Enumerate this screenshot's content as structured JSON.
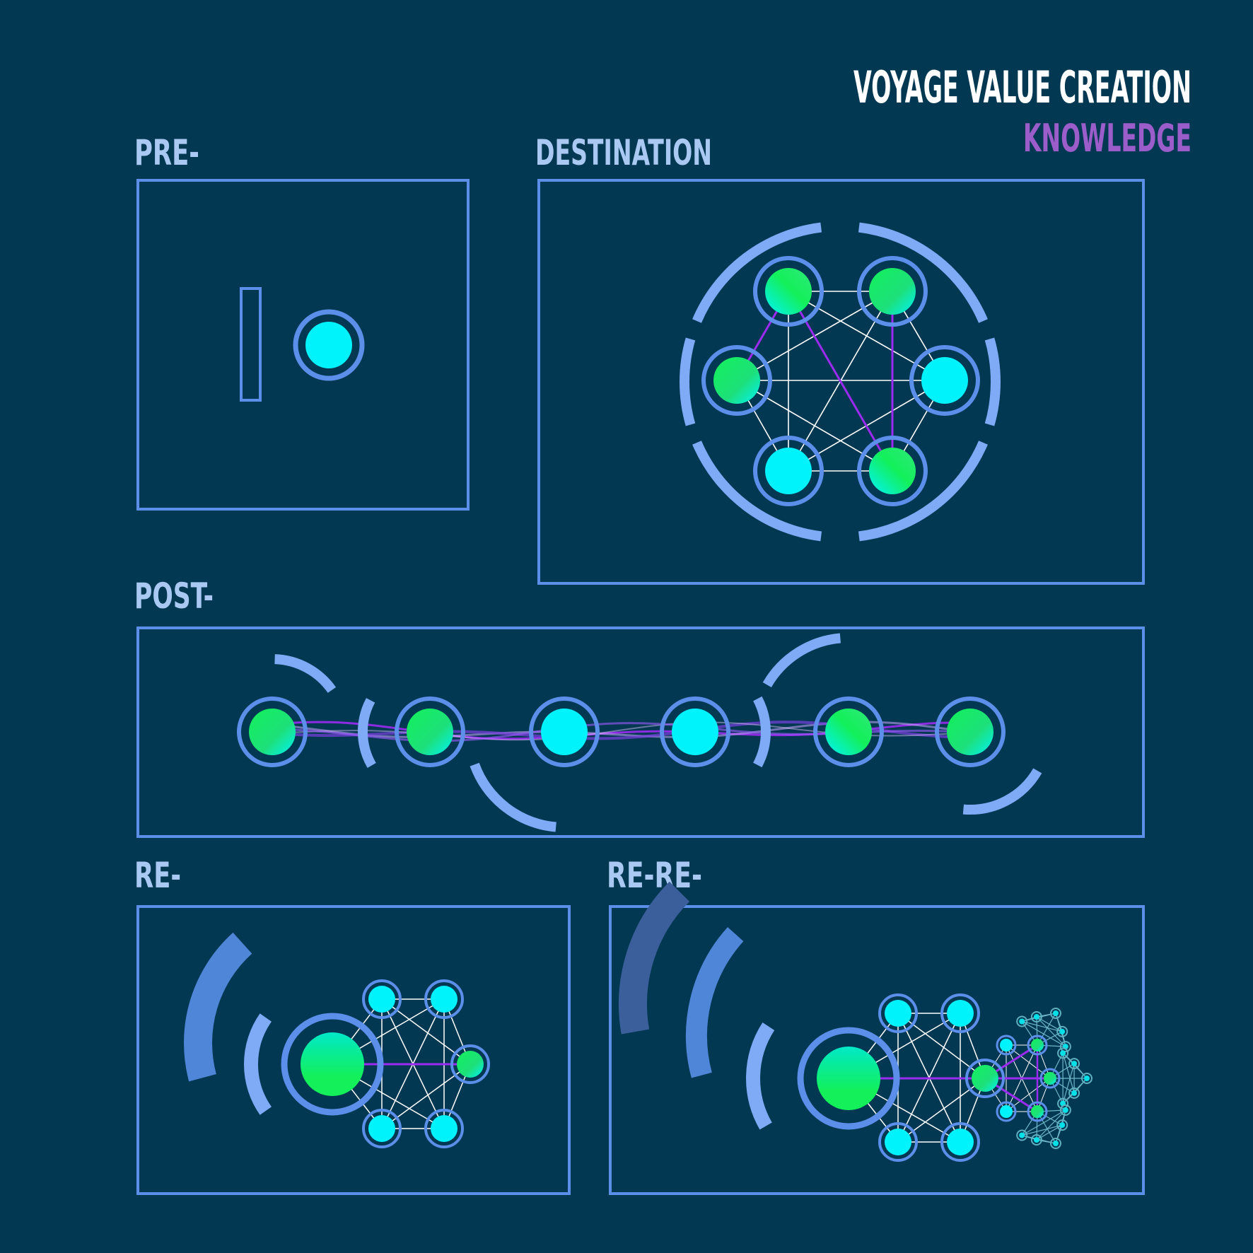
{
  "header": {
    "title": "VOYAGE VALUE CREATION",
    "subtitle": "KNOWLEDGE"
  },
  "panels": {
    "pre": {
      "label": "PRE-"
    },
    "destination": {
      "label": "DESTINATION"
    },
    "post": {
      "label": "POST-"
    },
    "re": {
      "label": "RE-"
    },
    "rere": {
      "label": "RE-RE-"
    }
  },
  "colors": {
    "background": "#033853",
    "frame": "#5b8fea",
    "arc": "#7eaaf6",
    "arc_dark": "#4f86d8",
    "title": "#ffffff",
    "subtitle": "#9b5dc9",
    "label": "#a9c9f3",
    "node_cyan": "#00f2fb",
    "node_green": "#13f05a",
    "link": "#ffffff",
    "link_accent": "#9b2bf0"
  }
}
